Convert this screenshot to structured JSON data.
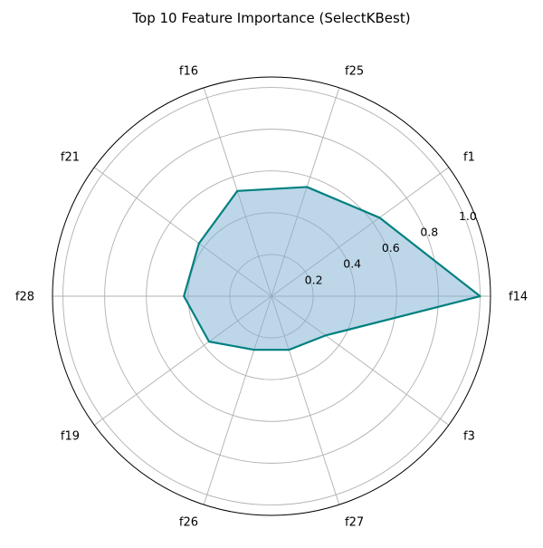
{
  "chart_data": {
    "type": "radar",
    "title": "Top 10 Feature Importance (SelectKBest)",
    "categories": [
      "f14",
      "f1",
      "f25",
      "f16",
      "f21",
      "f28",
      "f19",
      "f26",
      "f27",
      "f3"
    ],
    "values": [
      1.0,
      0.64,
      0.55,
      0.53,
      0.43,
      0.42,
      0.37,
      0.27,
      0.27,
      0.32
    ],
    "radial_ticks": [
      0.2,
      0.4,
      0.6,
      0.8,
      1.0
    ],
    "radial_tick_labels": [
      "0.2",
      "0.4",
      "0.6",
      "0.8",
      "1.0"
    ],
    "rlim": [
      0,
      1.05
    ],
    "grid": true,
    "line_color": "#008080",
    "fill_color": "#7bafd4",
    "grid_color": "#b0b0b0"
  }
}
